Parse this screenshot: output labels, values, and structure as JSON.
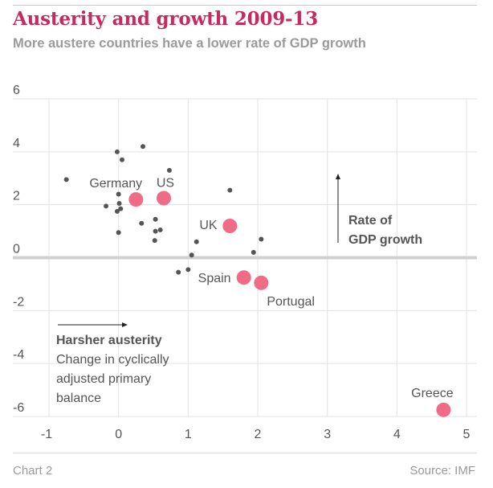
{
  "title": "Austerity and growth 2009-13",
  "subtitle": "More austere countries have a lower rate of GDP growth",
  "footer": {
    "chart_label": "Chart 2",
    "source": "Source: IMF"
  },
  "colors": {
    "title": "#c72a5e",
    "highlight": "#f06b86",
    "dot": "#555555",
    "grid": "#e3e3e3",
    "zero_line": "#d0d0d0",
    "text": "#555555",
    "muted": "#9a9a9a"
  },
  "chart_data": {
    "type": "scatter",
    "title": "Austerity and growth 2009-13",
    "subtitle": "More austere countries have a lower rate of GDP growth",
    "xlabel": "Change in cyclically adjusted primary balance",
    "ylabel": "Rate of GDP growth",
    "xlim": [
      -1,
      5
    ],
    "ylim": [
      -6,
      6
    ],
    "x_ticks": [
      -1,
      0,
      1,
      2,
      3,
      4,
      5
    ],
    "y_ticks": [
      -6,
      -4,
      -2,
      0,
      2,
      4,
      6
    ],
    "grid": true,
    "annotations": {
      "x_axis_title": "Harsher austerity",
      "x_axis_desc": [
        "Change in cyclically",
        "adjusted primary",
        "balance"
      ],
      "y_axis_title": [
        "Rate of",
        "GDP growth"
      ]
    },
    "labeled_points": [
      {
        "label": "Germany",
        "x": 0.25,
        "y": 2.2
      },
      {
        "label": "US",
        "x": 0.65,
        "y": 2.25
      },
      {
        "label": "UK",
        "x": 1.6,
        "y": 1.2
      },
      {
        "label": "Spain",
        "x": 1.8,
        "y": -0.75
      },
      {
        "label": "Portugal",
        "x": 2.05,
        "y": -0.95
      },
      {
        "label": "Greece",
        "x": 4.67,
        "y": -5.75
      }
    ],
    "points": [
      {
        "x": -0.75,
        "y": 2.95
      },
      {
        "x": -0.02,
        "y": 4.0
      },
      {
        "x": 0.05,
        "y": 3.7
      },
      {
        "x": 0.35,
        "y": 4.2
      },
      {
        "x": 0.73,
        "y": 3.3
      },
      {
        "x": 0.0,
        "y": 2.4
      },
      {
        "x": -0.18,
        "y": 1.95
      },
      {
        "x": 0.01,
        "y": 2.05
      },
      {
        "x": -0.02,
        "y": 1.75
      },
      {
        "x": 0.03,
        "y": 1.85
      },
      {
        "x": 0.0,
        "y": 0.95
      },
      {
        "x": 0.33,
        "y": 1.3
      },
      {
        "x": 0.53,
        "y": 1.45
      },
      {
        "x": 0.53,
        "y": 1.0
      },
      {
        "x": 0.6,
        "y": 1.05
      },
      {
        "x": 0.52,
        "y": 0.65
      },
      {
        "x": 1.6,
        "y": 2.55
      },
      {
        "x": 1.12,
        "y": 0.6
      },
      {
        "x": 1.05,
        "y": 0.1
      },
      {
        "x": 0.86,
        "y": -0.55
      },
      {
        "x": 1.0,
        "y": -0.45
      },
      {
        "x": 1.94,
        "y": 0.2
      },
      {
        "x": 2.05,
        "y": 0.7
      }
    ]
  }
}
